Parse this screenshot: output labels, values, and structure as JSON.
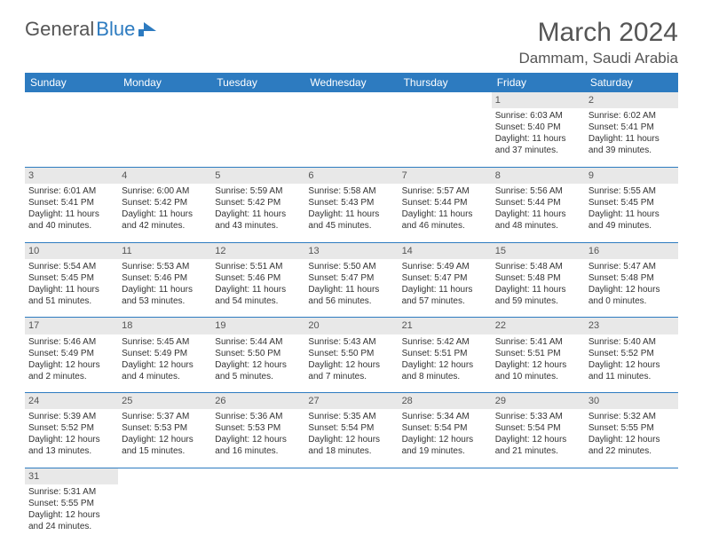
{
  "logo_part1": "General",
  "logo_part2": "Blue",
  "month_title": "March 2024",
  "location": "Dammam, Saudi Arabia",
  "colors": {
    "header_bg": "#2d7bc0",
    "header_text": "#ffffff",
    "daynum_bg": "#e8e8e8",
    "rule": "#2d7bc0",
    "text": "#333333"
  },
  "day_headers": [
    "Sunday",
    "Monday",
    "Tuesday",
    "Wednesday",
    "Thursday",
    "Friday",
    "Saturday"
  ],
  "weeks": [
    [
      null,
      null,
      null,
      null,
      null,
      {
        "n": "1",
        "sr": "Sunrise: 6:03 AM",
        "ss": "Sunset: 5:40 PM",
        "d1": "Daylight: 11 hours",
        "d2": "and 37 minutes."
      },
      {
        "n": "2",
        "sr": "Sunrise: 6:02 AM",
        "ss": "Sunset: 5:41 PM",
        "d1": "Daylight: 11 hours",
        "d2": "and 39 minutes."
      }
    ],
    [
      {
        "n": "3",
        "sr": "Sunrise: 6:01 AM",
        "ss": "Sunset: 5:41 PM",
        "d1": "Daylight: 11 hours",
        "d2": "and 40 minutes."
      },
      {
        "n": "4",
        "sr": "Sunrise: 6:00 AM",
        "ss": "Sunset: 5:42 PM",
        "d1": "Daylight: 11 hours",
        "d2": "and 42 minutes."
      },
      {
        "n": "5",
        "sr": "Sunrise: 5:59 AM",
        "ss": "Sunset: 5:42 PM",
        "d1": "Daylight: 11 hours",
        "d2": "and 43 minutes."
      },
      {
        "n": "6",
        "sr": "Sunrise: 5:58 AM",
        "ss": "Sunset: 5:43 PM",
        "d1": "Daylight: 11 hours",
        "d2": "and 45 minutes."
      },
      {
        "n": "7",
        "sr": "Sunrise: 5:57 AM",
        "ss": "Sunset: 5:44 PM",
        "d1": "Daylight: 11 hours",
        "d2": "and 46 minutes."
      },
      {
        "n": "8",
        "sr": "Sunrise: 5:56 AM",
        "ss": "Sunset: 5:44 PM",
        "d1": "Daylight: 11 hours",
        "d2": "and 48 minutes."
      },
      {
        "n": "9",
        "sr": "Sunrise: 5:55 AM",
        "ss": "Sunset: 5:45 PM",
        "d1": "Daylight: 11 hours",
        "d2": "and 49 minutes."
      }
    ],
    [
      {
        "n": "10",
        "sr": "Sunrise: 5:54 AM",
        "ss": "Sunset: 5:45 PM",
        "d1": "Daylight: 11 hours",
        "d2": "and 51 minutes."
      },
      {
        "n": "11",
        "sr": "Sunrise: 5:53 AM",
        "ss": "Sunset: 5:46 PM",
        "d1": "Daylight: 11 hours",
        "d2": "and 53 minutes."
      },
      {
        "n": "12",
        "sr": "Sunrise: 5:51 AM",
        "ss": "Sunset: 5:46 PM",
        "d1": "Daylight: 11 hours",
        "d2": "and 54 minutes."
      },
      {
        "n": "13",
        "sr": "Sunrise: 5:50 AM",
        "ss": "Sunset: 5:47 PM",
        "d1": "Daylight: 11 hours",
        "d2": "and 56 minutes."
      },
      {
        "n": "14",
        "sr": "Sunrise: 5:49 AM",
        "ss": "Sunset: 5:47 PM",
        "d1": "Daylight: 11 hours",
        "d2": "and 57 minutes."
      },
      {
        "n": "15",
        "sr": "Sunrise: 5:48 AM",
        "ss": "Sunset: 5:48 PM",
        "d1": "Daylight: 11 hours",
        "d2": "and 59 minutes."
      },
      {
        "n": "16",
        "sr": "Sunrise: 5:47 AM",
        "ss": "Sunset: 5:48 PM",
        "d1": "Daylight: 12 hours",
        "d2": "and 0 minutes."
      }
    ],
    [
      {
        "n": "17",
        "sr": "Sunrise: 5:46 AM",
        "ss": "Sunset: 5:49 PM",
        "d1": "Daylight: 12 hours",
        "d2": "and 2 minutes."
      },
      {
        "n": "18",
        "sr": "Sunrise: 5:45 AM",
        "ss": "Sunset: 5:49 PM",
        "d1": "Daylight: 12 hours",
        "d2": "and 4 minutes."
      },
      {
        "n": "19",
        "sr": "Sunrise: 5:44 AM",
        "ss": "Sunset: 5:50 PM",
        "d1": "Daylight: 12 hours",
        "d2": "and 5 minutes."
      },
      {
        "n": "20",
        "sr": "Sunrise: 5:43 AM",
        "ss": "Sunset: 5:50 PM",
        "d1": "Daylight: 12 hours",
        "d2": "and 7 minutes."
      },
      {
        "n": "21",
        "sr": "Sunrise: 5:42 AM",
        "ss": "Sunset: 5:51 PM",
        "d1": "Daylight: 12 hours",
        "d2": "and 8 minutes."
      },
      {
        "n": "22",
        "sr": "Sunrise: 5:41 AM",
        "ss": "Sunset: 5:51 PM",
        "d1": "Daylight: 12 hours",
        "d2": "and 10 minutes."
      },
      {
        "n": "23",
        "sr": "Sunrise: 5:40 AM",
        "ss": "Sunset: 5:52 PM",
        "d1": "Daylight: 12 hours",
        "d2": "and 11 minutes."
      }
    ],
    [
      {
        "n": "24",
        "sr": "Sunrise: 5:39 AM",
        "ss": "Sunset: 5:52 PM",
        "d1": "Daylight: 12 hours",
        "d2": "and 13 minutes."
      },
      {
        "n": "25",
        "sr": "Sunrise: 5:37 AM",
        "ss": "Sunset: 5:53 PM",
        "d1": "Daylight: 12 hours",
        "d2": "and 15 minutes."
      },
      {
        "n": "26",
        "sr": "Sunrise: 5:36 AM",
        "ss": "Sunset: 5:53 PM",
        "d1": "Daylight: 12 hours",
        "d2": "and 16 minutes."
      },
      {
        "n": "27",
        "sr": "Sunrise: 5:35 AM",
        "ss": "Sunset: 5:54 PM",
        "d1": "Daylight: 12 hours",
        "d2": "and 18 minutes."
      },
      {
        "n": "28",
        "sr": "Sunrise: 5:34 AM",
        "ss": "Sunset: 5:54 PM",
        "d1": "Daylight: 12 hours",
        "d2": "and 19 minutes."
      },
      {
        "n": "29",
        "sr": "Sunrise: 5:33 AM",
        "ss": "Sunset: 5:54 PM",
        "d1": "Daylight: 12 hours",
        "d2": "and 21 minutes."
      },
      {
        "n": "30",
        "sr": "Sunrise: 5:32 AM",
        "ss": "Sunset: 5:55 PM",
        "d1": "Daylight: 12 hours",
        "d2": "and 22 minutes."
      }
    ],
    [
      {
        "n": "31",
        "sr": "Sunrise: 5:31 AM",
        "ss": "Sunset: 5:55 PM",
        "d1": "Daylight: 12 hours",
        "d2": "and 24 minutes."
      },
      null,
      null,
      null,
      null,
      null,
      null
    ]
  ]
}
